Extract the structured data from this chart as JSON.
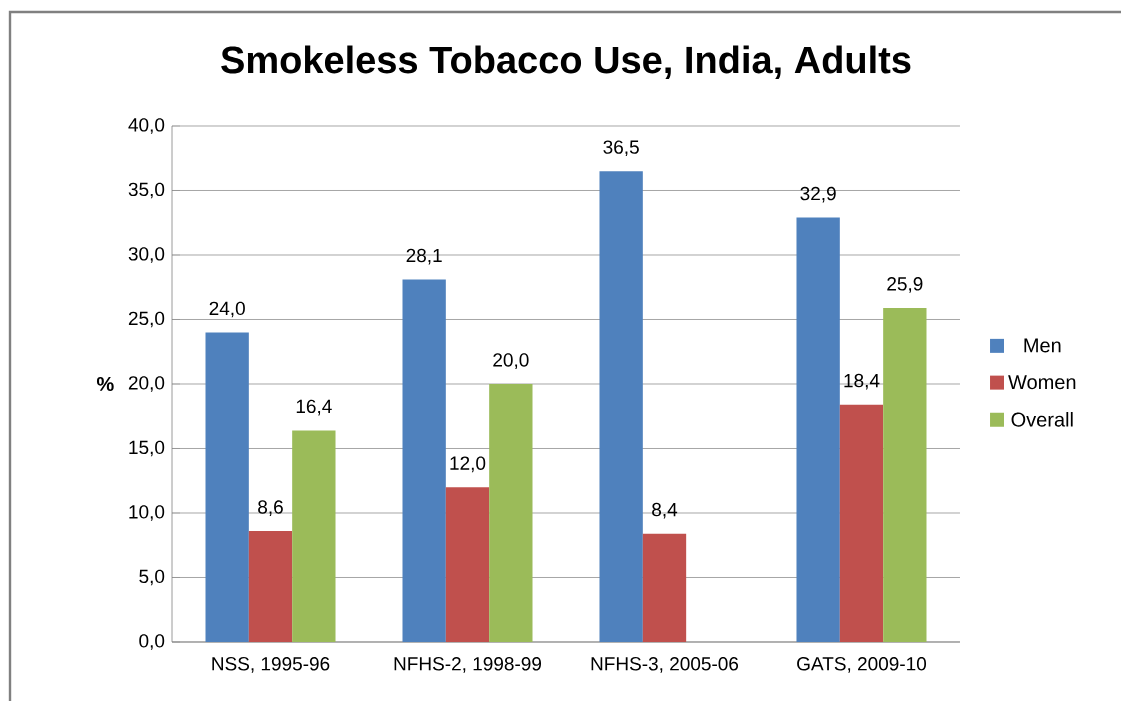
{
  "chart_data": {
    "type": "bar",
    "title": "Smokeless Tobacco Use, India, Adults",
    "ylabel": "%",
    "categories": [
      "NSS, 1995-96",
      "NFHS-2, 1998-99",
      "NFHS-3, 2005-06",
      "GATS, 2009-10"
    ],
    "series": [
      {
        "name": "Men",
        "color": "#4f81bd",
        "values": [
          24.0,
          28.1,
          36.5,
          32.9
        ],
        "value_labels": [
          "24,0",
          "28,1",
          "36,5",
          "32,9"
        ]
      },
      {
        "name": "Women",
        "color": "#c0504d",
        "values": [
          8.6,
          12.0,
          8.4,
          18.4
        ],
        "value_labels": [
          "8,6",
          "12,0",
          "8,4",
          "18,4"
        ]
      },
      {
        "name": "Overall",
        "color": "#9bbb59",
        "values": [
          16.4,
          20.0,
          null,
          25.9
        ],
        "value_labels": [
          "16,4",
          "20,0",
          null,
          "25,9"
        ]
      }
    ],
    "ylim": [
      0,
      40
    ],
    "yticks": [
      {
        "value": 0,
        "label": "0,0"
      },
      {
        "value": 5,
        "label": "5,0"
      },
      {
        "value": 10,
        "label": "10,0"
      },
      {
        "value": 15,
        "label": "15,0"
      },
      {
        "value": 20,
        "label": "20,0"
      },
      {
        "value": 25,
        "label": "25,0"
      },
      {
        "value": 30,
        "label": "30,0"
      },
      {
        "value": 35,
        "label": "35,0"
      },
      {
        "value": 40,
        "label": "40,0"
      }
    ],
    "grid": "y",
    "legend": "right"
  }
}
